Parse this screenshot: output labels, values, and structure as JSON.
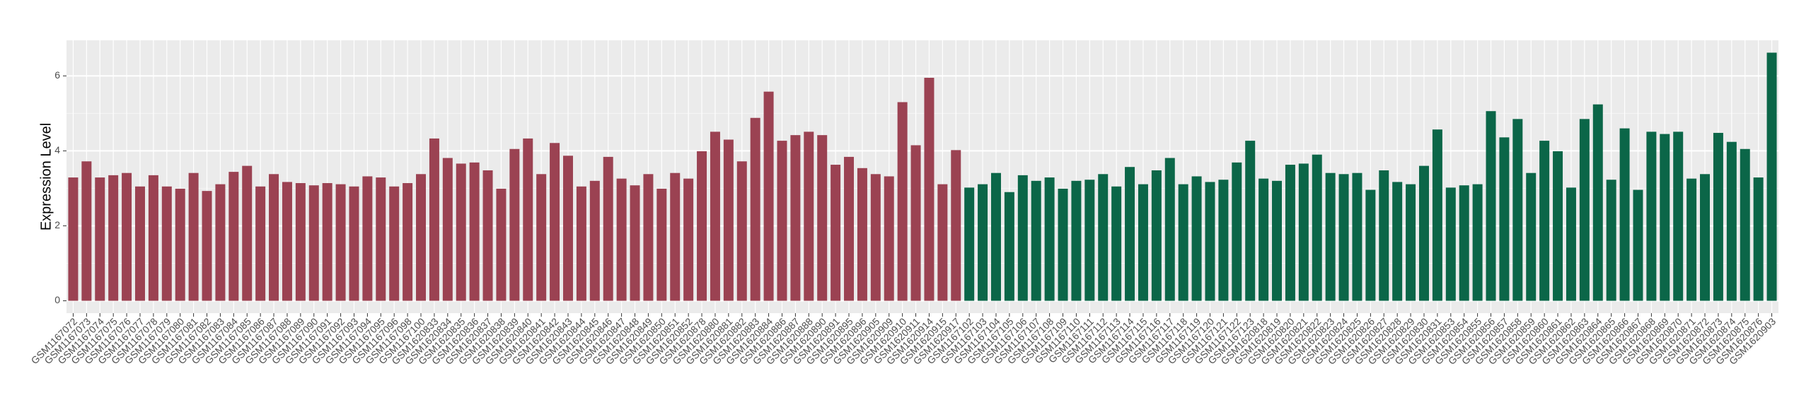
{
  "chart_data": {
    "type": "bar",
    "y_label": "Expression Level",
    "categories": [
      "GSM1167072",
      "GSM1167073",
      "GSM1167074",
      "GSM1167075",
      "GSM1167076",
      "GSM1167077",
      "GSM1167078",
      "GSM1167079",
      "GSM1167080",
      "GSM1167081",
      "GSM1167082",
      "GSM1167083",
      "GSM1167084",
      "GSM1167085",
      "GSM1167086",
      "GSM1167087",
      "GSM1167088",
      "GSM1167089",
      "GSM1167090",
      "GSM1167091",
      "GSM1167092",
      "GSM1167093",
      "GSM1167094",
      "GSM1167095",
      "GSM1167096",
      "GSM1167098",
      "GSM1167100",
      "GSM1620833",
      "GSM1620834",
      "GSM1620835",
      "GSM1620836",
      "GSM1620837",
      "GSM1620838",
      "GSM1620839",
      "GSM1620840",
      "GSM1620841",
      "GSM1620842",
      "GSM1620843",
      "GSM1620844",
      "GSM1620845",
      "GSM1620846",
      "GSM1620847",
      "GSM1620848",
      "GSM1620849",
      "GSM1620850",
      "GSM1620851",
      "GSM1620852",
      "GSM1620878",
      "GSM1620880",
      "GSM1620881",
      "GSM1620882",
      "GSM1620883",
      "GSM1620884",
      "GSM1620886",
      "GSM1620887",
      "GSM1620888",
      "GSM1620890",
      "GSM1620891",
      "GSM1620895",
      "GSM1620896",
      "GSM1620905",
      "GSM1620909",
      "GSM1620910",
      "GSM1620911",
      "GSM1620914",
      "GSM1620915",
      "GSM1620917",
      "GSM1167102",
      "GSM1167103",
      "GSM1167104",
      "GSM1167105",
      "GSM1167106",
      "GSM1167107",
      "GSM1167108",
      "GSM1167109",
      "GSM1167110",
      "GSM1167111",
      "GSM1167112",
      "GSM1167113",
      "GSM1167114",
      "GSM1167115",
      "GSM1167116",
      "GSM1167117",
      "GSM1167118",
      "GSM1167119",
      "GSM1167120",
      "GSM1167121",
      "GSM1167122",
      "GSM1167123",
      "GSM1620818",
      "GSM1620819",
      "GSM1620820",
      "GSM1620821",
      "GSM1620822",
      "GSM1620823",
      "GSM1620824",
      "GSM1620825",
      "GSM1620826",
      "GSM1620827",
      "GSM1620828",
      "GSM1620829",
      "GSM1620830",
      "GSM1620831",
      "GSM1620853",
      "GSM1620854",
      "GSM1620855",
      "GSM1620856",
      "GSM1620857",
      "GSM1620858",
      "GSM1620859",
      "GSM1620860",
      "GSM1620861",
      "GSM1620862",
      "GSM1620863",
      "GSM1620864",
      "GSM1620865",
      "GSM1620866",
      "GSM1620867",
      "GSM1620868",
      "GSM1620869",
      "GSM1620870",
      "GSM1620871",
      "GSM1620872",
      "GSM1620873",
      "GSM1620874",
      "GSM1620875",
      "GSM1620876",
      "GSM1620903"
    ],
    "series": [
      {
        "color": "#9b4252",
        "values": [
          3.29,
          3.72,
          3.29,
          3.35,
          3.41,
          3.05,
          3.35,
          3.05,
          2.99,
          3.41,
          2.93,
          3.11,
          3.44,
          3.6,
          3.05,
          3.38,
          3.17,
          3.14,
          3.08,
          3.14,
          3.11,
          3.05,
          3.32,
          3.29,
          3.05,
          3.14,
          3.38,
          4.33,
          3.81,
          3.66,
          3.69,
          3.48,
          2.99,
          4.05,
          4.33,
          3.38,
          4.21,
          3.87,
          3.05,
          3.2,
          3.84,
          3.26,
          3.08,
          3.38,
          2.99,
          3.41,
          3.26,
          3.99,
          4.51,
          4.3,
          3.72,
          4.88,
          5.58,
          4.27,
          4.42,
          4.51,
          4.42,
          3.63,
          3.84,
          3.54,
          3.38,
          3.32,
          5.3,
          4.15,
          5.95,
          3.11,
          4.02,
          null,
          null,
          null,
          null,
          null,
          null,
          null,
          null,
          null,
          null,
          null,
          null,
          null,
          null,
          null,
          null,
          null,
          null,
          null,
          null,
          null,
          null,
          null,
          null,
          null,
          null,
          null,
          null,
          null,
          null,
          null,
          null,
          null,
          null,
          null,
          null,
          null,
          null,
          null,
          null,
          null,
          null,
          null,
          null,
          null,
          null,
          null,
          null,
          null,
          null,
          null,
          null,
          null,
          null,
          null,
          null,
          null,
          null,
          null,
          null,
          null
        ]
      },
      {
        "color": "#0b6648",
        "values": [
          null,
          null,
          null,
          null,
          null,
          null,
          null,
          null,
          null,
          null,
          null,
          null,
          null,
          null,
          null,
          null,
          null,
          null,
          null,
          null,
          null,
          null,
          null,
          null,
          null,
          null,
          null,
          null,
          null,
          null,
          null,
          null,
          null,
          null,
          null,
          null,
          null,
          null,
          null,
          null,
          null,
          null,
          null,
          null,
          null,
          null,
          null,
          null,
          null,
          null,
          null,
          null,
          null,
          null,
          null,
          null,
          null,
          null,
          null,
          null,
          null,
          null,
          null,
          null,
          null,
          null,
          null,
          3.02,
          3.11,
          3.41,
          2.9,
          3.35,
          3.2,
          3.29,
          2.99,
          3.2,
          3.23,
          3.38,
          3.05,
          3.57,
          3.11,
          3.48,
          3.81,
          3.11,
          3.32,
          3.17,
          3.23,
          3.69,
          4.27,
          3.26,
          3.2,
          3.63,
          3.66,
          3.9,
          3.41,
          3.38,
          3.41,
          2.96,
          3.48,
          3.17,
          3.11,
          3.6,
          4.57,
          3.02,
          3.08,
          3.11,
          5.06,
          4.36,
          4.85,
          3.41,
          4.27,
          3.99,
          3.02,
          4.85,
          5.24,
          3.23,
          4.6,
          2.96,
          4.51,
          4.45,
          4.51,
          3.26,
          3.38,
          4.48,
          4.24,
          4.05,
          3.29,
          6.62
        ]
      }
    ],
    "ylim": [
      -0.33,
      6.95
    ],
    "yticks": [
      0,
      2,
      4,
      6
    ],
    "grid": true
  }
}
